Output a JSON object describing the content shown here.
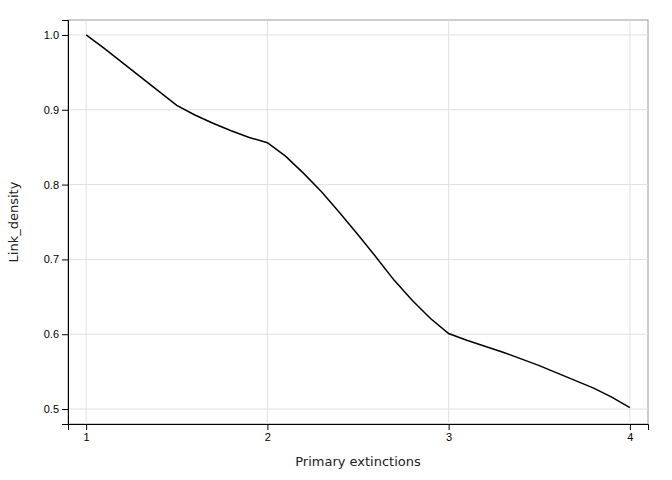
{
  "chart_data": {
    "type": "line",
    "x": [
      1.0,
      1.1,
      1.2,
      1.3,
      1.4,
      1.5,
      1.6,
      1.7,
      1.8,
      1.9,
      2.0,
      2.1,
      2.2,
      2.3,
      2.4,
      2.5,
      2.6,
      2.7,
      2.8,
      2.9,
      3.0,
      3.1,
      3.2,
      3.3,
      3.4,
      3.5,
      3.6,
      3.7,
      3.8,
      3.9,
      4.0
    ],
    "values": [
      1.0,
      0.982,
      0.963,
      0.944,
      0.925,
      0.906,
      0.893,
      0.882,
      0.872,
      0.863,
      0.856,
      0.838,
      0.815,
      0.79,
      0.762,
      0.733,
      0.703,
      0.672,
      0.645,
      0.621,
      0.601,
      0.592,
      0.584,
      0.576,
      0.567,
      0.558,
      0.548,
      0.538,
      0.528,
      0.516,
      0.502
    ],
    "color": "#000000",
    "xlabel": "Primary extinctions",
    "ylabel": "Link_density",
    "xlim": [
      0.9,
      4.1
    ],
    "ylim": [
      0.48,
      1.02
    ],
    "xticks": [
      1,
      2,
      3,
      4
    ],
    "yticks": [
      0.5,
      0.6,
      0.7,
      0.8,
      0.9,
      {
        "value": 1.0,
        "label": "1.0"
      }
    ],
    "grid": true
  }
}
